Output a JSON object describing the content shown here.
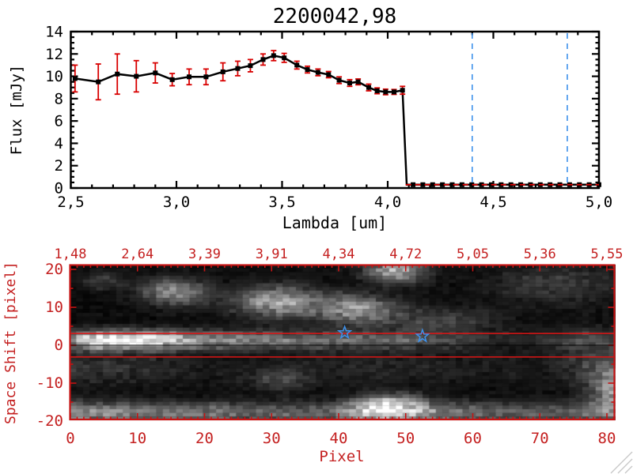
{
  "window": {
    "background": "#ffffff"
  },
  "colors": {
    "black": "#000000",
    "frame_red": "#c41414",
    "label_red": "#c42020",
    "error_red": "#d80000",
    "dash_red": "#e00000",
    "blue": "#3e91eb",
    "grip_gray": "#c8c8c8"
  },
  "chart_data": [
    {
      "type": "line",
      "title": "2200042,98",
      "xlabel": "Lambda [um]",
      "ylabel": "Flux [mJy]",
      "xlim": [
        2.5,
        5.0
      ],
      "ylim": [
        0,
        14
      ],
      "x_axis": {
        "major_step": 0.5,
        "minor_step": 0.1,
        "tick_labels": [
          {
            "v": 2.5,
            "t": "2,5"
          },
          {
            "v": 3.0,
            "t": "3,0"
          },
          {
            "v": 3.5,
            "t": "3,5"
          },
          {
            "v": 4.0,
            "t": "4,0"
          },
          {
            "v": 4.5,
            "t": "4,5"
          },
          {
            "v": 5.0,
            "t": "5,0"
          }
        ]
      },
      "y_axis": {
        "major_step": 2,
        "minor_step": 0.5,
        "tick_labels": [
          {
            "v": 0,
            "t": "0"
          },
          {
            "v": 2,
            "t": "2"
          },
          {
            "v": 4,
            "t": "4"
          },
          {
            "v": 6,
            "t": "6"
          },
          {
            "v": 8,
            "t": "8"
          },
          {
            "v": 10,
            "t": "10"
          },
          {
            "v": 12,
            "t": "12"
          },
          {
            "v": 14,
            "t": "14"
          }
        ]
      },
      "series": {
        "name": "spectrum",
        "marker": "filled-square",
        "lambda": [
          2.52,
          2.63,
          2.72,
          2.81,
          2.9,
          2.98,
          3.06,
          3.14,
          3.22,
          3.29,
          3.35,
          3.41,
          3.46,
          3.51,
          3.57,
          3.62,
          3.67,
          3.72,
          3.77,
          3.82,
          3.86,
          3.91,
          3.95,
          3.99,
          4.03,
          4.07
        ],
        "flux": [
          9.8,
          9.5,
          10.2,
          10.0,
          10.3,
          9.7,
          9.95,
          9.95,
          10.4,
          10.7,
          10.95,
          11.5,
          11.85,
          11.65,
          11.0,
          10.6,
          10.35,
          10.15,
          9.65,
          9.4,
          9.5,
          9.0,
          8.7,
          8.6,
          8.6,
          8.75
        ],
        "err": [
          1.2,
          1.6,
          1.8,
          1.4,
          0.9,
          0.55,
          0.7,
          0.7,
          0.8,
          0.65,
          0.55,
          0.5,
          0.45,
          0.4,
          0.35,
          0.3,
          0.3,
          0.28,
          0.3,
          0.3,
          0.26,
          0.3,
          0.26,
          0.25,
          0.22,
          0.35
        ]
      },
      "drop_lambda": 4.09,
      "zero_tail": {
        "lambda_start": 4.12,
        "lambda_end": 5.0,
        "n_points": 20,
        "flux": 0.3
      },
      "zero_dash_line": {
        "flux": 0.3,
        "lambda_start": 4.085,
        "lambda_end": 5.0
      },
      "vlines_dashed_blue": [
        4.4,
        4.85
      ]
    },
    {
      "type": "heatmap",
      "xlabel": "Pixel",
      "ylabel": "Space Shift [pixel]",
      "xlim": [
        0,
        81
      ],
      "ylim": [
        -20,
        21
      ],
      "x_axis": {
        "major_step": 10,
        "minor_step": 1,
        "tick_labels": [
          {
            "v": 0,
            "t": "0"
          },
          {
            "v": 10,
            "t": "10"
          },
          {
            "v": 20,
            "t": "20"
          },
          {
            "v": 30,
            "t": "30"
          },
          {
            "v": 40,
            "t": "40"
          },
          {
            "v": 50,
            "t": "50"
          },
          {
            "v": 60,
            "t": "60"
          },
          {
            "v": 70,
            "t": "70"
          },
          {
            "v": 80,
            "t": "80"
          }
        ]
      },
      "y_axis": {
        "major_step": 10,
        "minor_step": 5,
        "tick_labels": [
          {
            "v": 20,
            "t": "20"
          },
          {
            "v": 10,
            "t": "10"
          },
          {
            "v": 0,
            "t": "0"
          },
          {
            "v": -10,
            "t": "-10"
          },
          {
            "v": -20,
            "t": "-20"
          }
        ]
      },
      "top_axis_wavelength_labels": [
        {
          "p": 0,
          "t": "1,48"
        },
        {
          "p": 10,
          "t": "2,64"
        },
        {
          "p": 20,
          "t": "3,39"
        },
        {
          "p": 30,
          "t": "3,91"
        },
        {
          "p": 40,
          "t": "4,34"
        },
        {
          "p": 50,
          "t": "4,72"
        },
        {
          "p": 60,
          "t": "5,05"
        },
        {
          "p": 70,
          "t": "5,36"
        },
        {
          "p": 80,
          "t": "5,55"
        }
      ],
      "hlines": [
        {
          "y": 3.1,
          "color": "red"
        },
        {
          "y": 0.0,
          "color": "black"
        },
        {
          "y": -3.1,
          "color": "red"
        }
      ],
      "stars": [
        {
          "p": 40.9,
          "s": 3.3
        },
        {
          "p": 52.5,
          "s": 2.4
        }
      ],
      "heatmap": {
        "nx": 82,
        "ny": 42,
        "base": 0.05,
        "noise_mult": 0.5,
        "noise_add": 0.07,
        "seed": 7,
        "bands": [
          {
            "name": "source-trace",
            "y0": 1.3,
            "sigma": 1.7,
            "amp_x": [
              [
                0,
                0.38
              ],
              [
                2,
                0.8
              ],
              [
                4,
                0.95
              ],
              [
                6,
                1.0
              ],
              [
                12,
                0.95
              ],
              [
                16,
                0.7
              ],
              [
                22,
                0.5
              ],
              [
                30,
                0.42
              ],
              [
                40,
                0.36
              ],
              [
                50,
                0.32
              ],
              [
                56,
                0.22
              ],
              [
                62,
                0.12
              ],
              [
                70,
                0.09
              ],
              [
                81,
                0.07
              ]
            ]
          },
          {
            "name": "lower-band",
            "y0": -17.8,
            "sigma": 2.0,
            "amp_x": [
              [
                0,
                0.55
              ],
              [
                6,
                0.5
              ],
              [
                12,
                0.42
              ],
              [
                20,
                0.4
              ],
              [
                30,
                0.34
              ],
              [
                38,
                0.33
              ],
              [
                44,
                0.62
              ],
              [
                48,
                0.7
              ],
              [
                52,
                0.55
              ],
              [
                58,
                0.38
              ],
              [
                66,
                0.3
              ],
              [
                74,
                0.3
              ],
              [
                81,
                0.42
              ]
            ]
          },
          {
            "name": "mid-lower-haze",
            "y0": -6,
            "sigma": 3.0,
            "amp_x": [
              [
                0,
                0.18
              ],
              [
                10,
                0.12
              ],
              [
                20,
                0.06
              ],
              [
                30,
                0.05
              ],
              [
                45,
                0.1
              ],
              [
                55,
                0.08
              ],
              [
                70,
                0.05
              ],
              [
                81,
                0.28
              ]
            ]
          }
        ],
        "blobs": [
          {
            "x": 15.5,
            "y": 14,
            "sx": 3.5,
            "sy": 2.3,
            "amp": 0.5
          },
          {
            "x": 31,
            "y": 11.5,
            "sx": 4.5,
            "sy": 2.8,
            "amp": 0.6
          },
          {
            "x": 42.5,
            "y": 9.5,
            "sx": 4.0,
            "sy": 2.6,
            "amp": 0.55
          },
          {
            "x": 48.5,
            "y": 19.5,
            "sx": 3.0,
            "sy": 2.0,
            "amp": 0.65
          },
          {
            "x": 55,
            "y": 6.5,
            "sx": 6.0,
            "sy": 2.5,
            "amp": 0.22
          },
          {
            "x": 72,
            "y": 16,
            "sx": 6.0,
            "sy": 3.5,
            "amp": 0.2
          },
          {
            "x": 31.5,
            "y": -9,
            "sx": 3.0,
            "sy": 2.0,
            "amp": 0.22
          },
          {
            "x": 47.5,
            "y": -15.5,
            "sx": 3.5,
            "sy": 2.0,
            "amp": 0.5
          },
          {
            "x": 81,
            "y": -12,
            "sx": 2.5,
            "sy": 3.5,
            "amp": 0.5
          },
          {
            "x": 77,
            "y": 1,
            "sx": 3.5,
            "sy": 2.5,
            "amp": 0.2
          },
          {
            "x": 5,
            "y": 17,
            "sx": 2.0,
            "sy": 1.5,
            "amp": 0.22
          }
        ]
      }
    }
  ]
}
